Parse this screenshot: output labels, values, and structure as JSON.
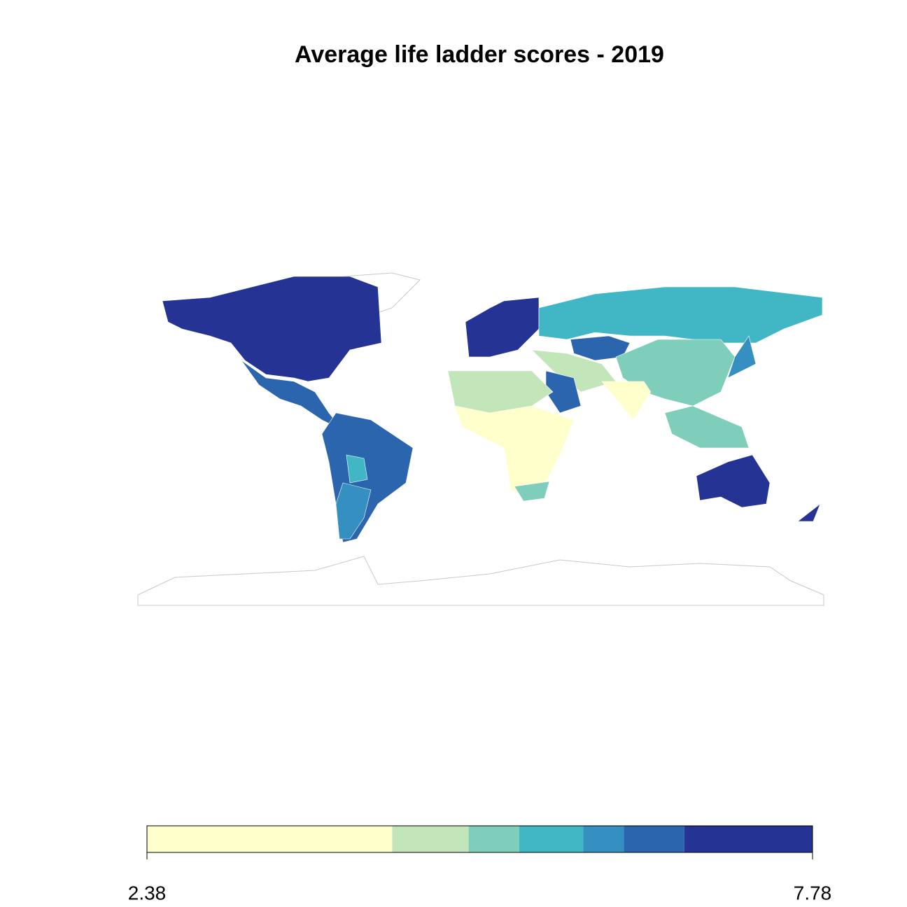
{
  "chart_data": {
    "type": "choropleth",
    "title": "Average life ladder scores - 2019",
    "legend": {
      "limits": [
        2.38,
        7.78
      ],
      "ticks": [
        2.38,
        7.78
      ],
      "breaks": [
        2.38,
        4.37,
        4.99,
        5.4,
        5.92,
        6.25,
        6.74,
        7.78
      ],
      "colors": [
        "#ffffcc",
        "#c2e6b9",
        "#7fcdbb",
        "#41b6c4",
        "#358fc0",
        "#2b65ad",
        "#253494"
      ]
    }
  }
}
